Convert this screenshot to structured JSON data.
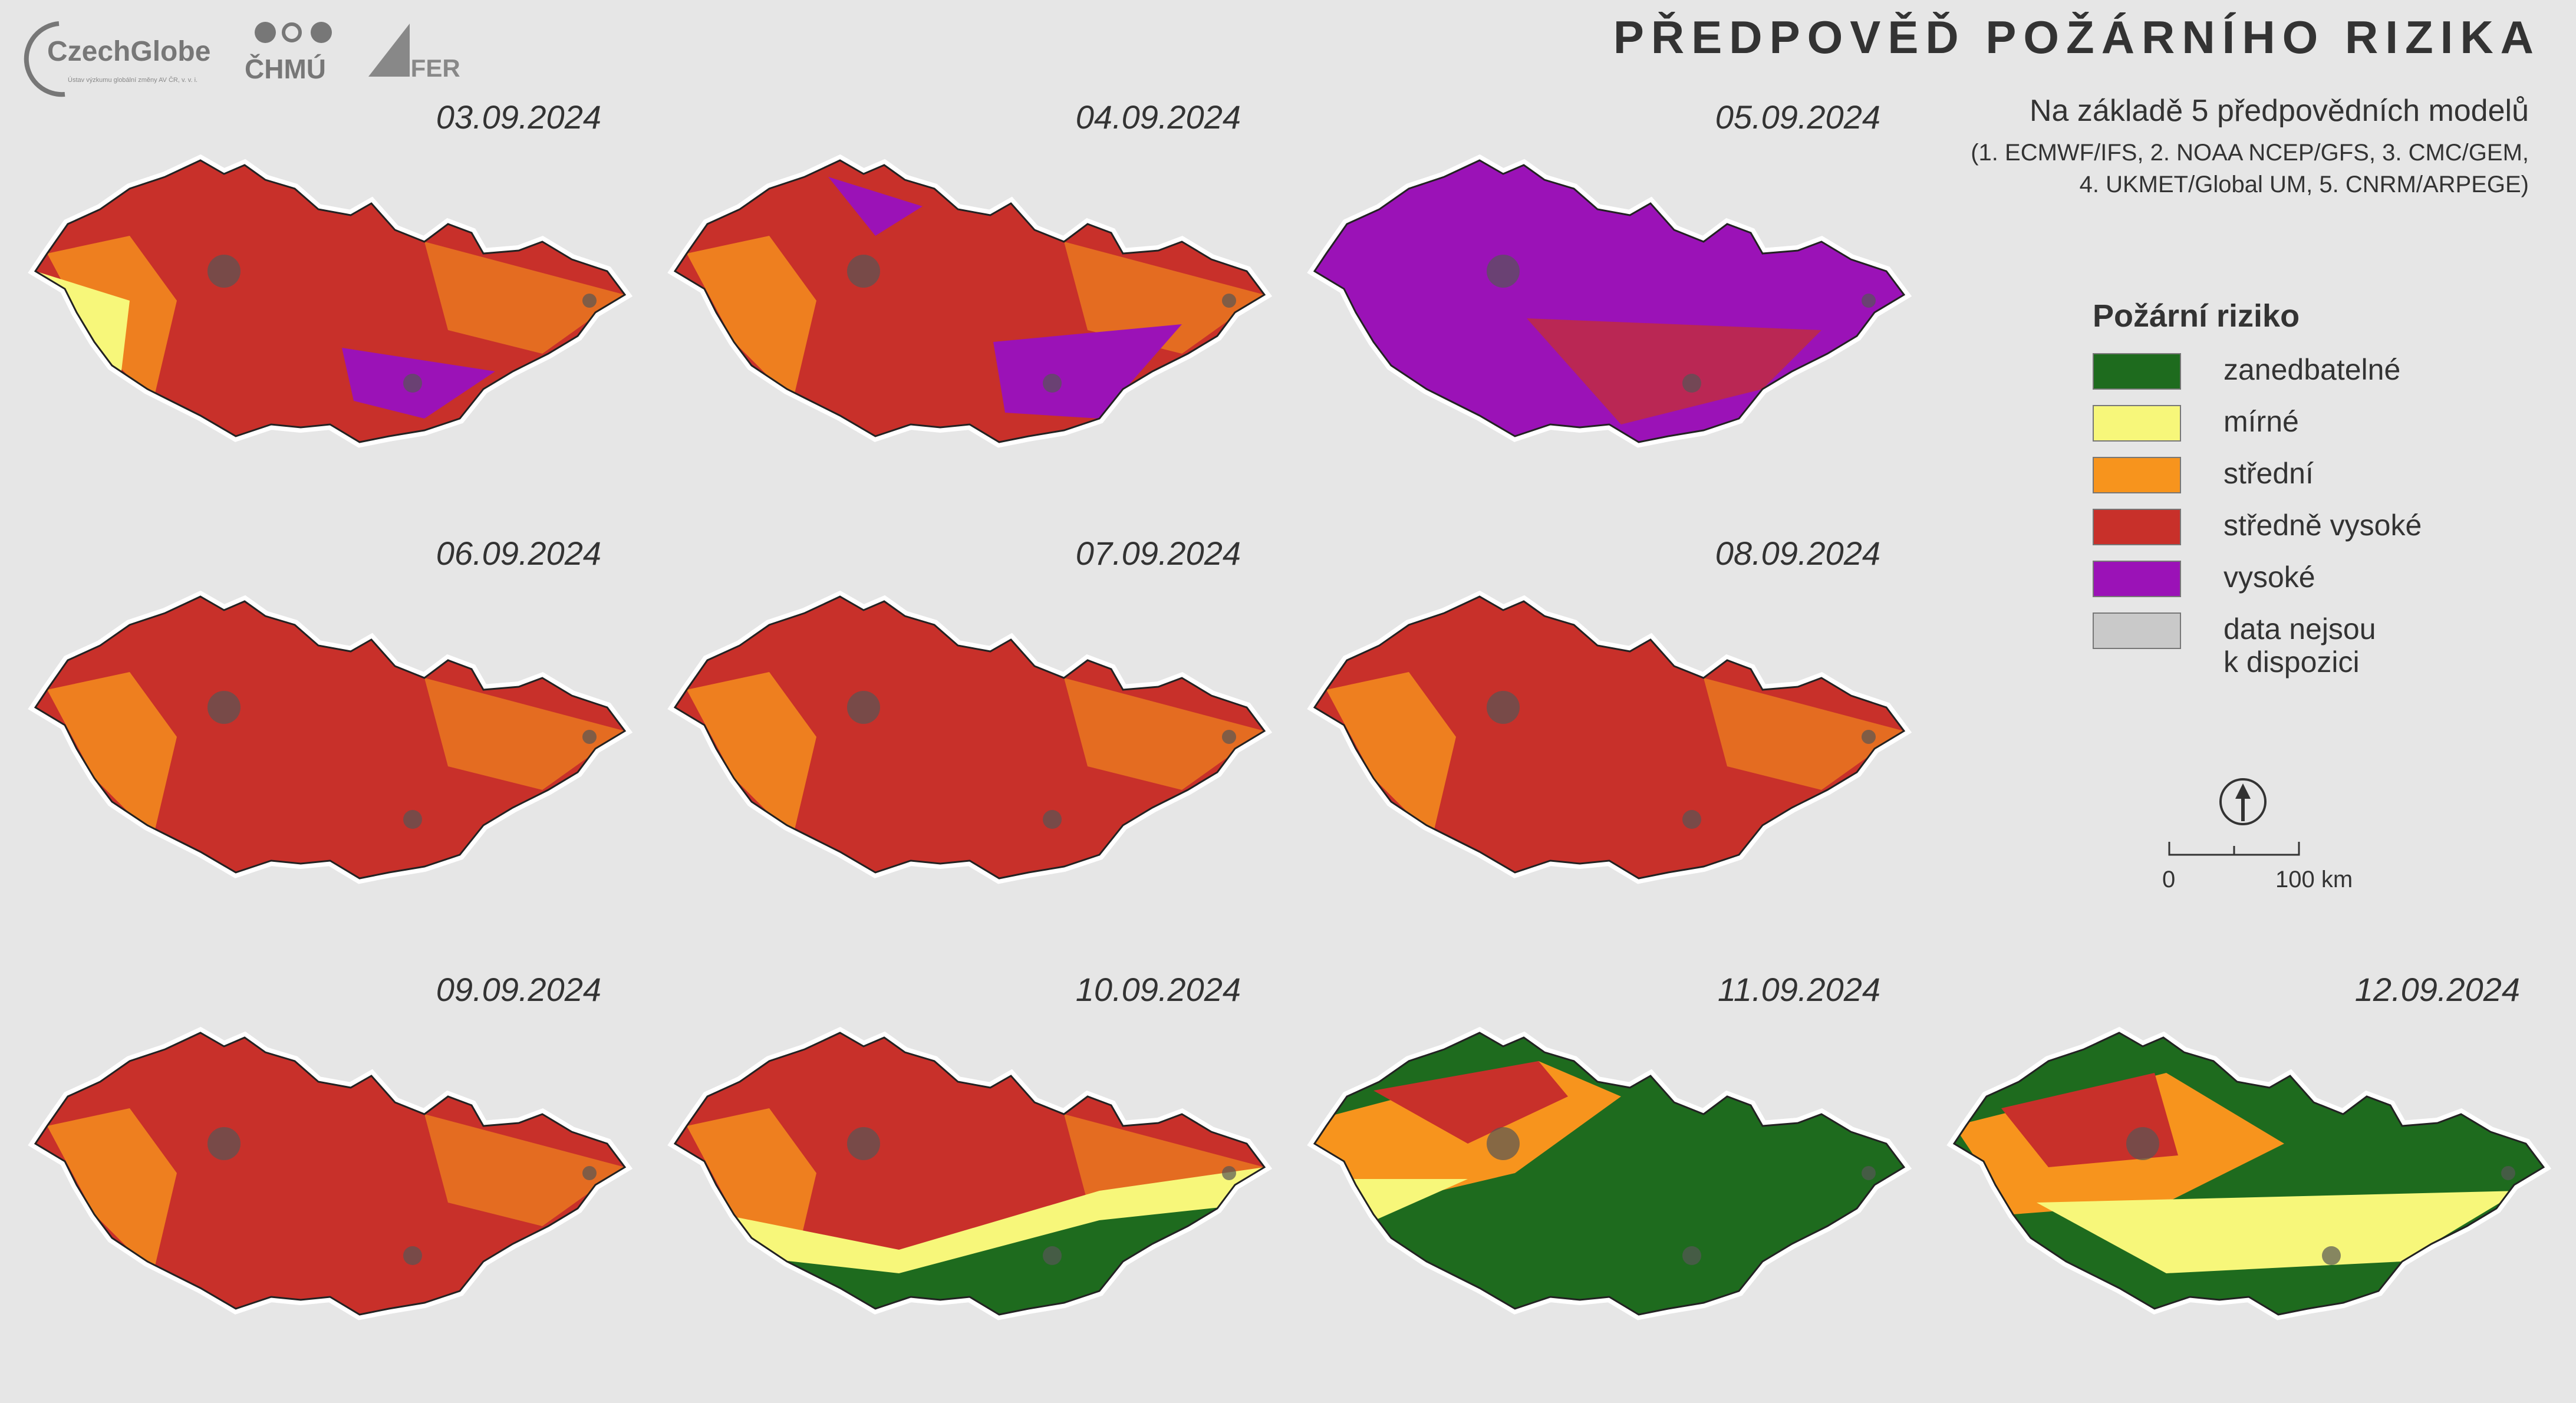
{
  "header": {
    "title": "PŘEDPOVĚĎ POŽÁRNÍHO RIZIKA",
    "subtitle": "Na základě 5 předpovědních modelů",
    "models_line1": "(1. ECMWF/IFS, 2. NOAA NCEP/GFS, 3. CMC/GEM,",
    "models_line2": "4. UKMET/Global UM, 5. CNRM/ARPEGE)"
  },
  "logos": {
    "czechglobe": "CzechGlobe",
    "czechglobe_sub": "Ústav výzkumu globální změny AV ČR, v. v. i.",
    "chmu": "ČHMÚ",
    "ifer": "IFER"
  },
  "colors": {
    "zanedbatelne": "#1e6b1e",
    "mirne": "#f7f77a",
    "stredni": "#f7941d",
    "stredne_vysoke": "#c8302a",
    "vysoke": "#9b12b7",
    "no_data": "#c9c9c9",
    "background": "#e6e6e6"
  },
  "legend": {
    "title": "Požární riziko",
    "items": [
      {
        "label": "zanedbatelné",
        "color": "#1e6b1e"
      },
      {
        "label": "mírné",
        "color": "#f7f77a"
      },
      {
        "label": "střední",
        "color": "#f7941d"
      },
      {
        "label": "středně vysoké",
        "color": "#c8302a"
      },
      {
        "label": "vysoké",
        "color": "#9b12b7"
      },
      {
        "label": "data nejsou",
        "label2": "k dispozici",
        "color": "#c9c9c9"
      }
    ]
  },
  "scale": {
    "zero": "0",
    "end": "100 km"
  },
  "maps": [
    {
      "date": "03.09.2024",
      "dominant": "stredne_vysoke"
    },
    {
      "date": "04.09.2024",
      "dominant": "stredne_vysoke"
    },
    {
      "date": "05.09.2024",
      "dominant": "vysoke"
    },
    {
      "date": "06.09.2024",
      "dominant": "stredne_vysoke"
    },
    {
      "date": "07.09.2024",
      "dominant": "stredne_vysoke"
    },
    {
      "date": "08.09.2024",
      "dominant": "stredne_vysoke"
    },
    {
      "date": "09.09.2024",
      "dominant": "stredne_vysoke"
    },
    {
      "date": "10.09.2024",
      "dominant": "stredne_vysoke"
    },
    {
      "date": "11.09.2024",
      "dominant": "zanedbatelne"
    },
    {
      "date": "12.09.2024",
      "dominant": "zanedbatelne"
    }
  ]
}
